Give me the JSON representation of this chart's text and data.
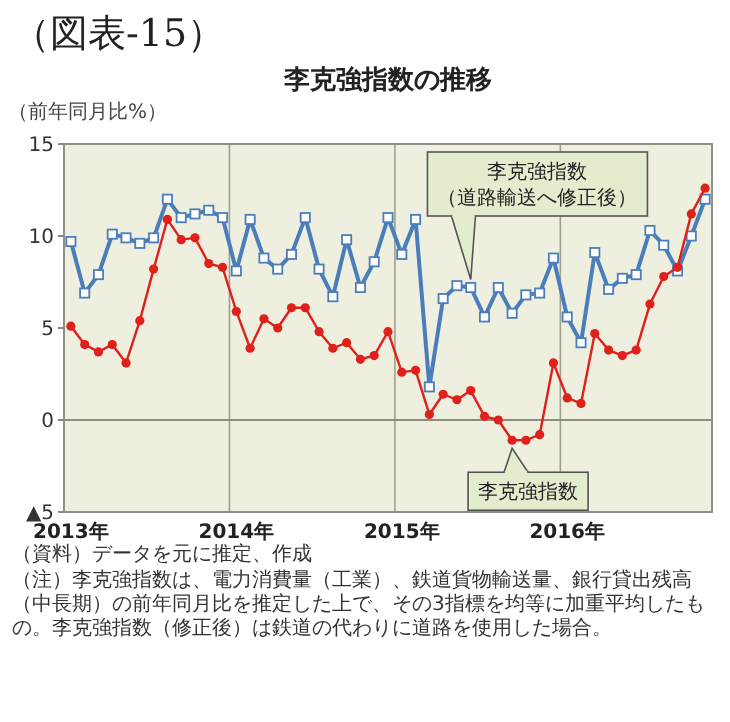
{
  "chart_data": {
    "type": "line",
    "title": "李克強指数の推移",
    "ylabel": "（前年同月比%）",
    "annotations": [
      "（図表-15）",
      "（資料）データを元に推定、作成",
      "（注）李克強指数は、電力消費量（工業）、鉄道貨物輸送量、銀行貸出残高（中長期）の前年同月比を推定した上で、その3指標を均等に加重平均したもの。李克強指数（修正後）は鉄道の代わりに道路を使用した場合。"
    ],
    "categories": [
      "2013年",
      null,
      null,
      null,
      null,
      null,
      null,
      null,
      null,
      null,
      null,
      null,
      "2014年",
      null,
      null,
      null,
      null,
      null,
      null,
      null,
      null,
      null,
      null,
      null,
      "2015年",
      null,
      null,
      null,
      null,
      null,
      null,
      null,
      null,
      null,
      null,
      null,
      "2016年",
      null,
      null,
      null,
      null,
      null,
      null,
      null,
      null,
      null,
      null
    ],
    "ylim": [
      -5,
      15
    ],
    "yticks": [
      {
        "value": -5,
        "label": "▲5"
      },
      0,
      5,
      10,
      15
    ],
    "grid": "x",
    "ref_lines": [
      {
        "axis": "y",
        "value": 0
      }
    ],
    "series": [
      {
        "name": "李克強指数（道路輸送へ修正後）",
        "color": "#4a7ebb",
        "marker": "square",
        "values": [
          9.7,
          6.9,
          7.9,
          10.1,
          9.9,
          9.6,
          9.9,
          12.0,
          11.0,
          11.2,
          11.4,
          11.0,
          8.1,
          10.9,
          8.8,
          8.2,
          9.0,
          11.0,
          8.2,
          6.7,
          9.8,
          7.2,
          8.6,
          11.0,
          9.0,
          10.9,
          1.8,
          6.6,
          7.3,
          7.2,
          5.6,
          7.2,
          5.8,
          6.8,
          6.9,
          8.8,
          5.6,
          4.2,
          9.1,
          7.1,
          7.7,
          7.9,
          10.3,
          9.5,
          8.1,
          10.0,
          12.0
        ]
      },
      {
        "name": "李克強指数",
        "color": "#e0201b",
        "marker": "circle",
        "values": [
          5.1,
          4.1,
          3.7,
          4.1,
          3.1,
          5.4,
          8.2,
          10.9,
          9.8,
          9.9,
          8.5,
          8.3,
          5.9,
          3.9,
          5.5,
          5.0,
          6.1,
          6.1,
          4.8,
          3.9,
          4.2,
          3.3,
          3.5,
          4.8,
          2.6,
          2.7,
          0.3,
          1.4,
          1.1,
          1.6,
          0.2,
          0.0,
          -1.1,
          -1.1,
          -0.8,
          3.1,
          1.2,
          0.9,
          4.7,
          3.8,
          3.5,
          3.8,
          6.3,
          7.8,
          8.3,
          11.2,
          12.6
        ]
      }
    ]
  }
}
